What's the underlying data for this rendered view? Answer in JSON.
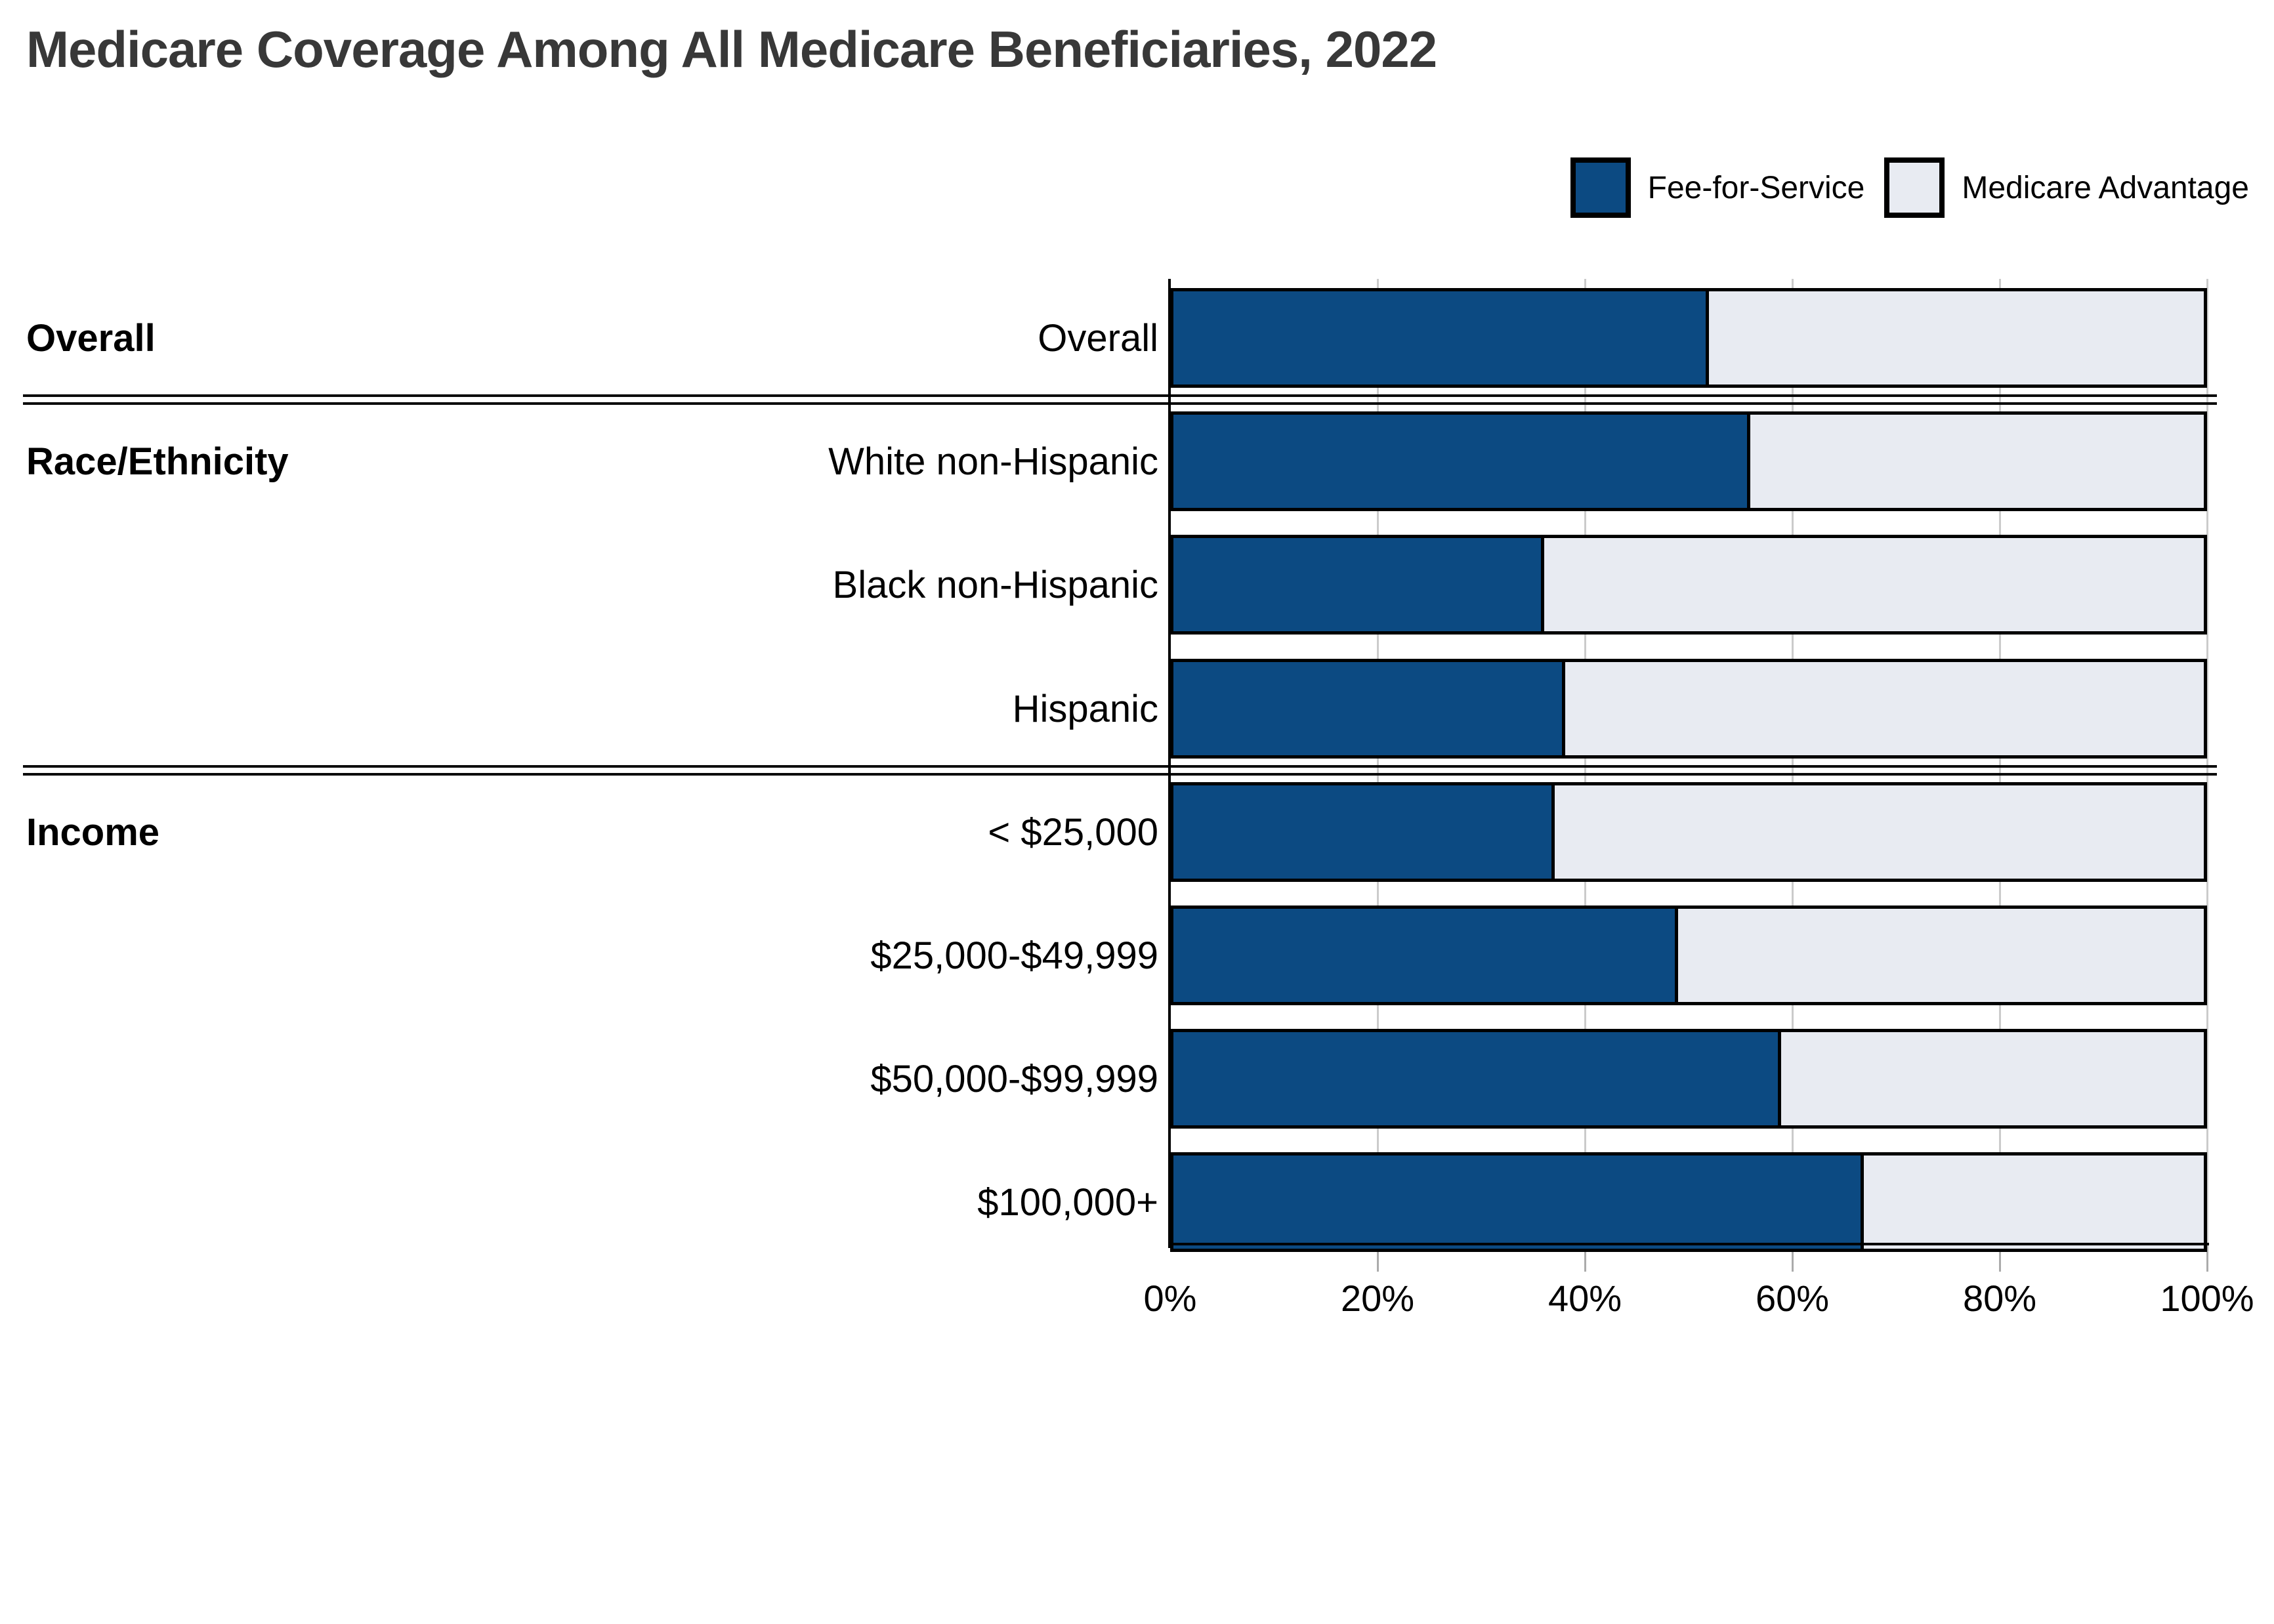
{
  "title": "Medicare Coverage Among All Medicare Beneficiaries, 2022",
  "colors": {
    "fee_for_service": "#0C4A82",
    "medicare_advantage": "#E8EBF2",
    "segment_border": "#000000",
    "gridline": "#CBCBCB",
    "tick": "#ABABAB",
    "axis": "#000000",
    "separator": "#0A0A0A",
    "title_text": "#383838",
    "label_text": "#000000"
  },
  "legend": {
    "position": "top-right",
    "items": [
      {
        "label": "Fee-for-Service",
        "color_key": "fee_for_service"
      },
      {
        "label": "Medicare Advantage",
        "color_key": "medicare_advantage"
      }
    ]
  },
  "chart_data": {
    "type": "bar",
    "orientation": "horizontal",
    "stacked": true,
    "title": "Medicare Coverage Among All Medicare Beneficiaries, 2022",
    "categories": [
      "Overall",
      "White non-Hispanic",
      "Black non-Hispanic",
      "Hispanic",
      "< $25,000",
      "$25,000-$49,999",
      "$50,000-$99,999",
      "$100,000+"
    ],
    "sections": [
      {
        "label": "Overall",
        "rows": [
          0
        ]
      },
      {
        "label": "Race/Ethnicity",
        "rows": [
          1,
          2,
          3
        ]
      },
      {
        "label": "Income",
        "rows": [
          4,
          5,
          6,
          7
        ]
      }
    ],
    "series": [
      {
        "name": "Fee-for-Service",
        "values": [
          52,
          56,
          36,
          38,
          37,
          49,
          59,
          67
        ]
      },
      {
        "name": "Medicare Advantage",
        "values": [
          48,
          44,
          64,
          62,
          63,
          51,
          41,
          33
        ]
      }
    ],
    "xlabel": "",
    "ylabel": "",
    "xlim": [
      0,
      100
    ],
    "xticks": [
      "0%",
      "20%",
      "40%",
      "60%",
      "80%",
      "100%"
    ],
    "grid": true,
    "legend_position": "top-right",
    "units": "percent of beneficiaries"
  }
}
